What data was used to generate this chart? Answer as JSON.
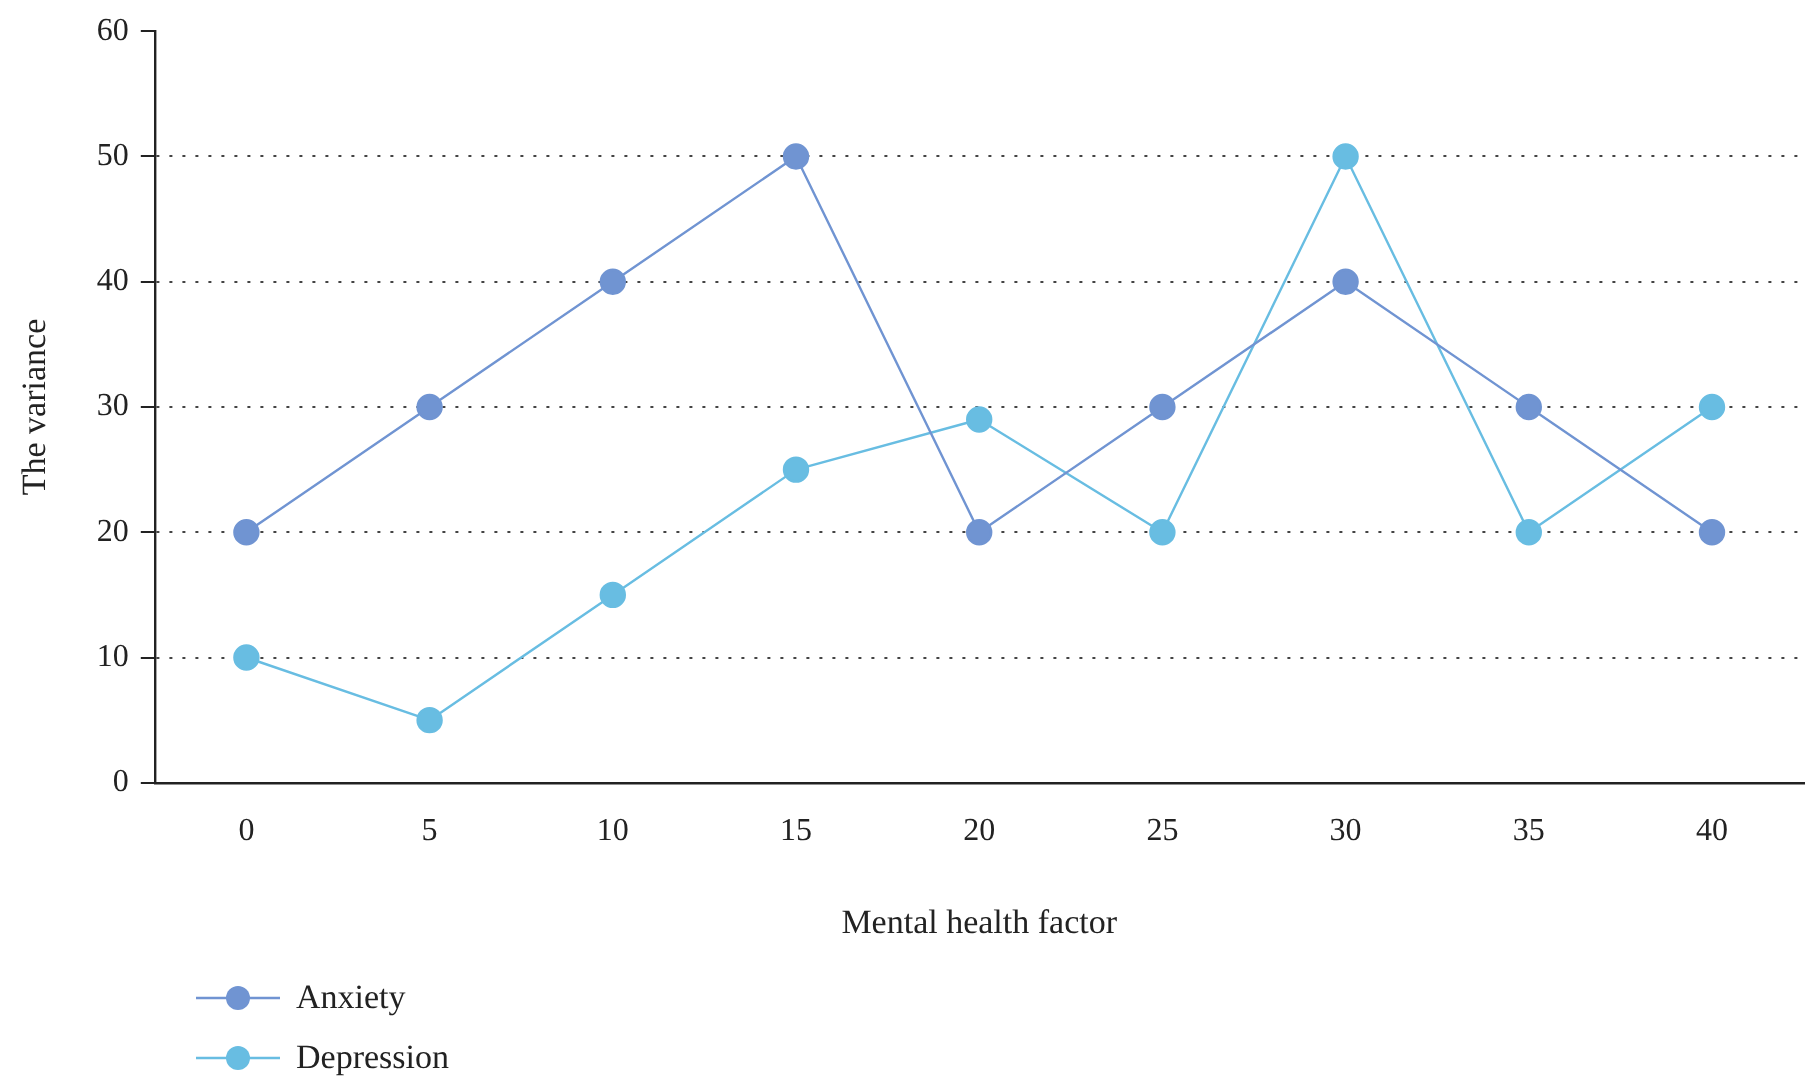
{
  "chart_data": {
    "type": "line",
    "xlabel": "Mental health factor",
    "ylabel": "The variance",
    "x": [
      0,
      5,
      10,
      15,
      20,
      25,
      30,
      35,
      40
    ],
    "series": [
      {
        "name": "Anxiety",
        "color": "#7094d2",
        "values": [
          20,
          30,
          40,
          50,
          20,
          30,
          40,
          30,
          20
        ]
      },
      {
        "name": "Depression",
        "color": "#68bde2",
        "values": [
          10,
          5,
          15,
          25,
          29,
          20,
          50,
          20,
          30
        ]
      }
    ],
    "xlim": [
      -2.5,
      42.5
    ],
    "xticks": [
      0,
      5,
      10,
      15,
      20,
      25,
      30,
      35,
      40
    ],
    "ylim": [
      0,
      60
    ],
    "yticks": [
      0,
      10,
      20,
      30,
      40,
      50,
      60
    ],
    "grid": "y",
    "legend": "bottom left",
    "marker": "circle",
    "line_style": "solid"
  }
}
